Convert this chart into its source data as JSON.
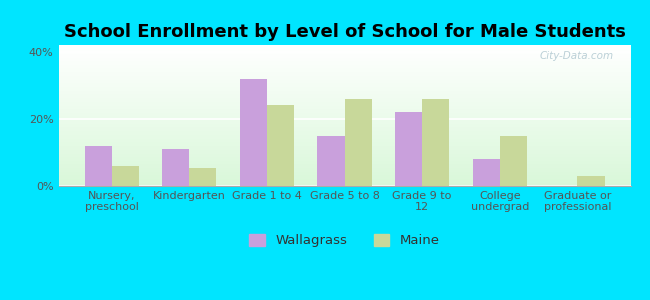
{
  "title": "School Enrollment by Level of School for Male Students",
  "categories": [
    "Nursery,\npreschool",
    "Kindergarten",
    "Grade 1 to 4",
    "Grade 5 to 8",
    "Grade 9 to\n12",
    "College\nundergrad",
    "Graduate or\nprofessional"
  ],
  "wallagrass": [
    12,
    11,
    32,
    15,
    22,
    8,
    0
  ],
  "maine": [
    6,
    5.5,
    24,
    26,
    26,
    15,
    3
  ],
  "wallagrass_color": "#c9a0dc",
  "maine_color": "#c8d89a",
  "background_color": "#00e5ff",
  "ylabel_ticks": [
    0,
    20,
    40
  ],
  "ytick_labels": [
    "0%",
    "20%",
    "40%"
  ],
  "ylim": [
    0,
    42
  ],
  "bar_width": 0.35,
  "title_fontsize": 13,
  "tick_fontsize": 8,
  "legend_fontsize": 9.5,
  "watermark": "City-Data.com"
}
